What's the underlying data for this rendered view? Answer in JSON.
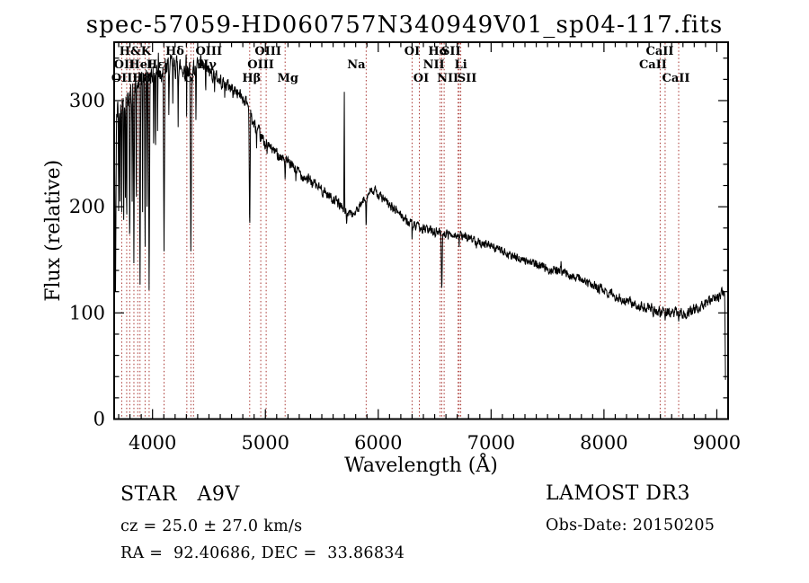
{
  "figure": {
    "title": "spec-57059-HD060757N340949V01_sp04-117.fits"
  },
  "annotations": {
    "class_line": "STAR   A9V",
    "cz_line": "cz = 25.0 ± 27.0 km/s",
    "radec_line": "RA =  92.40686, DEC =  33.86834",
    "survey": "LAMOST DR3",
    "obs_date": "Obs-Date: 20150205"
  },
  "colors": {
    "background": "#ffffff",
    "spectrum": "#000000",
    "axis": "#000000",
    "line_marker": "#a83430",
    "text": "#000000"
  },
  "chart_data": {
    "type": "line",
    "title": "spec-57059-HD060757N340949V01_sp04-117.fits",
    "xlabel": "Wavelength (Å)",
    "ylabel": "Flux (relative)",
    "xlim": [
      3660,
      9100
    ],
    "ylim": [
      0,
      355
    ],
    "x_ticks": [
      4000,
      5000,
      6000,
      7000,
      8000,
      9000
    ],
    "y_ticks": [
      0,
      100,
      200,
      300
    ],
    "x_minor_step": 100,
    "y_minor_step": 20,
    "grid": false,
    "legend": "none",
    "marker_wavelengths": [
      3727,
      3771,
      3798,
      3835,
      3869,
      3889,
      3934,
      3970,
      4102,
      4304,
      4340,
      4363,
      4861,
      4959,
      5007,
      5175,
      5893,
      6300,
      6364,
      6548,
      6563,
      6584,
      6708,
      6717,
      6731,
      8498,
      8542,
      8662
    ],
    "line_labels": [
      {
        "text": "H&K",
        "wavelength": 3950,
        "row": 1,
        "dx": -13
      },
      {
        "text": "Hδ",
        "wavelength": 4102,
        "row": 1,
        "dx": 12
      },
      {
        "text": "OIII",
        "wavelength": 4363,
        "row": 1,
        "dx": 17
      },
      {
        "text": "OIII",
        "wavelength": 5007,
        "row": 1,
        "dx": 2
      },
      {
        "text": "OI",
        "wavelength": 6300,
        "row": 1,
        "dx": 0
      },
      {
        "text": "Hα",
        "wavelength": 6563,
        "row": 1,
        "dx": -4
      },
      {
        "text": "SII",
        "wavelength": 6717,
        "row": 1,
        "dx": -9
      },
      {
        "text": "CaII",
        "wavelength": 8542,
        "row": 1,
        "dx": -6
      },
      {
        "text": "OII",
        "wavelength": 3727,
        "row": 2,
        "dx": 3
      },
      {
        "text": "HeI",
        "wavelength": 3889,
        "row": 2,
        "dx": 1
      },
      {
        "text": "Hε",
        "wavelength": 3970,
        "row": 2,
        "dx": 7
      },
      {
        "text": "Hγ",
        "wavelength": 4340,
        "row": 2,
        "dx": 18
      },
      {
        "text": "OIII",
        "wavelength": 4959,
        "row": 2,
        "dx": 0
      },
      {
        "text": "Na",
        "wavelength": 5893,
        "row": 2,
        "dx": -11
      },
      {
        "text": "NII",
        "wavelength": 6548,
        "row": 2,
        "dx": -7
      },
      {
        "text": "Li",
        "wavelength": 6708,
        "row": 2,
        "dx": 3
      },
      {
        "text": "CaII",
        "wavelength": 8498,
        "row": 2,
        "dx": -8
      },
      {
        "text": "OIII",
        "wavelength": 3729,
        "row": 3,
        "dx": 3
      },
      {
        "text": "H8",
        "wavelength": 3889,
        "row": 3,
        "dx": 2
      },
      {
        "text": "G",
        "wavelength": 4304,
        "row": 3,
        "dx": 2
      },
      {
        "text": "Hβ",
        "wavelength": 4861,
        "row": 3,
        "dx": 2
      },
      {
        "text": "Mg",
        "wavelength": 5175,
        "row": 3,
        "dx": 3
      },
      {
        "text": "OI",
        "wavelength": 6364,
        "row": 3,
        "dx": 2
      },
      {
        "text": "NII",
        "wavelength": 6584,
        "row": 3,
        "dx": 4
      },
      {
        "text": "SII",
        "wavelength": 6731,
        "row": 3,
        "dx": 7
      },
      {
        "text": "CaII",
        "wavelength": 8662,
        "row": 3,
        "dx": -3
      }
    ],
    "continuum": [
      [
        3660,
        235
      ],
      [
        3672,
        265
      ],
      [
        3690,
        292
      ],
      [
        3720,
        298
      ],
      [
        3750,
        302
      ],
      [
        3800,
        306
      ],
      [
        3850,
        312
      ],
      [
        3900,
        318
      ],
      [
        3950,
        323
      ],
      [
        4000,
        328
      ],
      [
        4060,
        328
      ],
      [
        4120,
        330
      ],
      [
        4180,
        333
      ],
      [
        4240,
        331
      ],
      [
        4300,
        330
      ],
      [
        4360,
        329
      ],
      [
        4420,
        331
      ],
      [
        4480,
        329
      ],
      [
        4540,
        324
      ],
      [
        4600,
        319
      ],
      [
        4660,
        315
      ],
      [
        4720,
        311
      ],
      [
        4780,
        305
      ],
      [
        4840,
        298
      ],
      [
        4880,
        282
      ],
      [
        4920,
        272
      ],
      [
        4960,
        265
      ],
      [
        5000,
        260
      ],
      [
        5060,
        254
      ],
      [
        5120,
        249
      ],
      [
        5180,
        243
      ],
      [
        5250,
        237
      ],
      [
        5350,
        228
      ],
      [
        5450,
        220
      ],
      [
        5550,
        212
      ],
      [
        5650,
        203
      ],
      [
        5720,
        196
      ],
      [
        5780,
        193
      ],
      [
        5830,
        198
      ],
      [
        5880,
        208
      ],
      [
        5930,
        214
      ],
      [
        5980,
        214
      ],
      [
        6030,
        209
      ],
      [
        6080,
        203
      ],
      [
        6140,
        198
      ],
      [
        6200,
        193
      ],
      [
        6260,
        186
      ],
      [
        6320,
        181
      ],
      [
        6380,
        180
      ],
      [
        6440,
        178
      ],
      [
        6500,
        177
      ],
      [
        6560,
        176
      ],
      [
        6620,
        175
      ],
      [
        6700,
        173
      ],
      [
        6800,
        171
      ],
      [
        6900,
        167
      ],
      [
        7000,
        163
      ],
      [
        7100,
        158
      ],
      [
        7200,
        153
      ],
      [
        7300,
        150
      ],
      [
        7380,
        147
      ],
      [
        7450,
        143
      ],
      [
        7520,
        141
      ],
      [
        7600,
        140
      ],
      [
        7680,
        137
      ],
      [
        7760,
        133
      ],
      [
        7840,
        129
      ],
      [
        7920,
        125
      ],
      [
        8000,
        121
      ],
      [
        8100,
        116
      ],
      [
        8200,
        111
      ],
      [
        8300,
        107
      ],
      [
        8400,
        104
      ],
      [
        8500,
        101
      ],
      [
        8600,
        100
      ],
      [
        8700,
        100
      ],
      [
        8800,
        103
      ],
      [
        8900,
        108
      ],
      [
        9000,
        114
      ],
      [
        9060,
        119
      ],
      [
        9090,
        121
      ]
    ],
    "absorption_dips": [
      [
        3672,
        120,
        8
      ],
      [
        3700,
        185,
        5
      ],
      [
        3712,
        205,
        4
      ],
      [
        3727,
        195,
        5
      ],
      [
        3745,
        175,
        5
      ],
      [
        3760,
        195,
        4
      ],
      [
        3771,
        165,
        5
      ],
      [
        3798,
        148,
        6
      ],
      [
        3820,
        190,
        4
      ],
      [
        3835,
        132,
        6
      ],
      [
        3856,
        175,
        4
      ],
      [
        3889,
        112,
        7
      ],
      [
        3912,
        195,
        4
      ],
      [
        3934,
        148,
        6
      ],
      [
        3952,
        200,
        4
      ],
      [
        3970,
        108,
        8
      ],
      [
        4010,
        250,
        4
      ],
      [
        4026,
        235,
        4
      ],
      [
        4045,
        260,
        3
      ],
      [
        4102,
        158,
        9
      ],
      [
        4145,
        280,
        4
      ],
      [
        4180,
        290,
        3
      ],
      [
        4227,
        275,
        4
      ],
      [
        4300,
        255,
        5
      ],
      [
        4340,
        148,
        9
      ],
      [
        4385,
        275,
        4
      ],
      [
        4471,
        300,
        3
      ],
      [
        4550,
        305,
        3
      ],
      [
        4640,
        300,
        3
      ],
      [
        4713,
        298,
        3
      ],
      [
        4861,
        170,
        8
      ],
      [
        4922,
        255,
        3
      ],
      [
        5015,
        248,
        3
      ],
      [
        5175,
        224,
        5
      ],
      [
        5270,
        222,
        3
      ],
      [
        5720,
        183,
        6
      ],
      [
        5893,
        176,
        5
      ],
      [
        6300,
        167,
        3
      ],
      [
        6563,
        116,
        8
      ],
      [
        6620,
        168,
        3
      ],
      [
        6717,
        162,
        3
      ],
      [
        6870,
        160,
        5
      ],
      [
        8498,
        94,
        4
      ],
      [
        8542,
        93,
        4
      ],
      [
        8662,
        92,
        5
      ],
      [
        9078,
        25,
        8
      ]
    ],
    "emission_spikes": [
      [
        4052,
        345,
        3
      ],
      [
        4298,
        350,
        3
      ],
      [
        5699,
        324,
        4
      ],
      [
        7620,
        150,
        4
      ]
    ],
    "noise_segments": [
      [
        3660,
        8
      ],
      [
        4450,
        5
      ],
      [
        5000,
        4
      ],
      [
        5600,
        3.5
      ],
      [
        6600,
        3
      ],
      [
        7400,
        3.5
      ],
      [
        8400,
        4
      ]
    ]
  }
}
